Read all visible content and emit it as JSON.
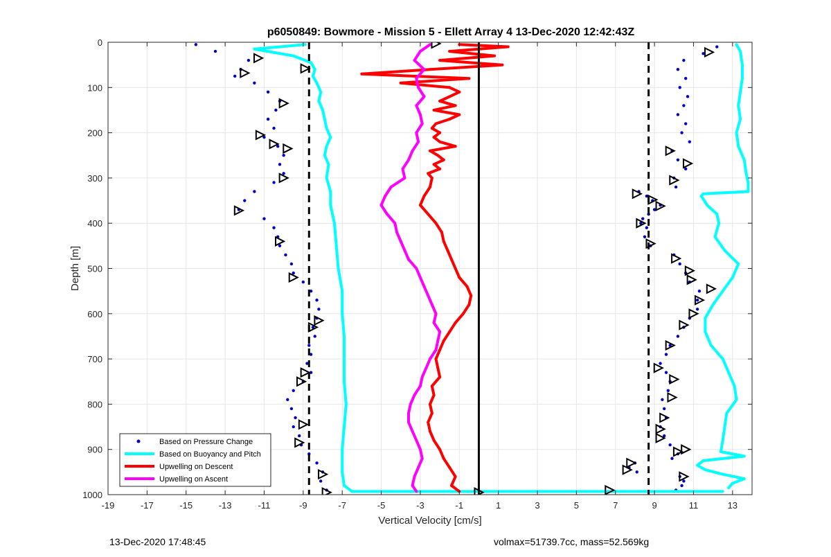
{
  "chart_data": {
    "type": "scatter",
    "title": "p6050849: Bowmore - Mission 5 - Ellett Array 4 13-Dec-2020 12:42:43Z",
    "xlabel": "Vertical Velocity [cm/s]",
    "ylabel": "Depth [m]",
    "xlim": [
      -19,
      14
    ],
    "ylim": [
      0,
      1000
    ],
    "y_reversed": true,
    "x_ticks": [
      -19,
      -17,
      -15,
      -13,
      -11,
      -9,
      -7,
      -5,
      -3,
      -1,
      1,
      3,
      5,
      7,
      9,
      11,
      13
    ],
    "y_ticks": [
      0,
      100,
      200,
      300,
      400,
      500,
      600,
      700,
      800,
      900,
      1000
    ],
    "grid": true,
    "legend_position": "bottom-left",
    "reference_lines": [
      {
        "x": -8.7,
        "style": "dashed",
        "color": "#000000"
      },
      {
        "x": 8.7,
        "style": "dashed",
        "color": "#000000"
      },
      {
        "x": 0,
        "style": "solid",
        "color": "#000000"
      }
    ],
    "series": [
      {
        "name": "Based on Pressure Change",
        "kind": "points",
        "color": "#0000cc",
        "branches": [
          {
            "depth": [
              5,
              20,
              40,
              60,
              75,
              90,
              110,
              130,
              150,
              170,
              190,
              210,
              230,
              250,
              270,
              290,
              310,
              330,
              350,
              370,
              390,
              410,
              430,
              450,
              470,
              490,
              510,
              530,
              550,
              570,
              590,
              610,
              630,
              650,
              670,
              690,
              710,
              730,
              750,
              770,
              790,
              810,
              830,
              850,
              870,
              890,
              910,
              930,
              950,
              970,
              990
            ],
            "velocity": [
              -14.5,
              -13.5,
              -11.8,
              -12.2,
              -12.5,
              -11.5,
              -10.8,
              -10.2,
              -10.4,
              -10.8,
              -10.5,
              -11.0,
              -10.3,
              -10.0,
              -10.2,
              -10.0,
              -10.5,
              -11.5,
              -12.0,
              -12.3,
              -11.0,
              -10.5,
              -10.3,
              -10.2,
              -9.9,
              -9.6,
              -9.5,
              -9.0,
              -8.6,
              -8.3,
              -8.2,
              -8.3,
              -8.5,
              -8.4,
              -8.7,
              -8.6,
              -8.8,
              -8.6,
              -9.0,
              -9.5,
              -9.8,
              -9.6,
              -9.4,
              -9.5,
              -9.2,
              -9.1,
              -8.7,
              -8.3,
              -8.0,
              -8.1,
              -7.8
            ]
          },
          {
            "depth": [
              10,
              25,
              40,
              60,
              80,
              100,
              120,
              140,
              160,
              180,
              200,
              220,
              240,
              260,
              280,
              300,
              320,
              330,
              340,
              350,
              360,
              370,
              380,
              390,
              400,
              410,
              430,
              450,
              470,
              490,
              510,
              530,
              550,
              570,
              590,
              610,
              630,
              650,
              670,
              690,
              710,
              730,
              750,
              770,
              790,
              810,
              830,
              850,
              870,
              890,
              910,
              920,
              930,
              940,
              950,
              960,
              970,
              980,
              990
            ],
            "velocity": [
              12.2,
              11.5,
              10.5,
              10.2,
              10.6,
              10.3,
              10.7,
              10.5,
              10.2,
              10.6,
              10.4,
              10.8,
              9.9,
              10.2,
              10.6,
              10.0,
              10.1,
              8.2,
              8.6,
              8.9,
              9.3,
              9.0,
              8.7,
              8.4,
              8.3,
              8.6,
              8.5,
              8.8,
              10.0,
              10.3,
              10.6,
              10.8,
              11.3,
              11.2,
              11.2,
              10.8,
              10.5,
              10.2,
              9.8,
              9.6,
              9.3,
              9.6,
              9.8,
              9.7,
              9.4,
              9.5,
              9.6,
              9.3,
              9.5,
              9.8,
              10.2,
              9.9,
              8.0,
              7.7,
              8.1,
              10.3,
              10.5,
              10.4,
              10.1
            ]
          }
        ]
      },
      {
        "name": "Based on Buoyancy and Pitch",
        "kind": "line",
        "color": "#00ffff",
        "branches": [
          {
            "depth": [
              5,
              15,
              30,
              45,
              60,
              75,
              90,
              110,
              130,
              150,
              170,
              190,
              210,
              230,
              250,
              270,
              300,
              330,
              360,
              400,
              450,
              500,
              550,
              600,
              650,
              700,
              750,
              800,
              850,
              900,
              950,
              980,
              993
            ],
            "velocity": [
              -8.9,
              -11.5,
              -9.5,
              -8.6,
              -8.4,
              -8.5,
              -8.3,
              -8.1,
              -8.2,
              -8.0,
              -7.9,
              -7.8,
              -7.6,
              -7.8,
              -7.9,
              -7.7,
              -7.8,
              -7.6,
              -7.6,
              -7.4,
              -7.3,
              -7.2,
              -7.0,
              -7.0,
              -6.9,
              -6.9,
              -6.9,
              -6.8,
              -6.9,
              -7.0,
              -7.0,
              -6.9,
              -6.5
            ]
          },
          {
            "depth": [
              993,
              993
            ],
            "velocity": [
              -6.5,
              12.5
            ]
          },
          {
            "depth": [
              5,
              20,
              50,
              80,
              110,
              140,
              170,
              200,
              230,
              260,
              290,
              310,
              330,
              335,
              340,
              360,
              380,
              400,
              430,
              460,
              490,
              520,
              550,
              580,
              610,
              640,
              670,
              700,
              730,
              760,
              790,
              820,
              850,
              880,
              905,
              915,
              925,
              935,
              945,
              955,
              965,
              975,
              985
            ],
            "velocity": [
              13.2,
              13.4,
              13.5,
              13.5,
              13.4,
              13.3,
              13.4,
              13.2,
              13.3,
              13.6,
              13.7,
              13.8,
              13.8,
              11.5,
              11.4,
              11.7,
              12.2,
              12.3,
              12.1,
              12.6,
              13.3,
              13.0,
              12.5,
              12.0,
              11.6,
              11.6,
              11.9,
              12.5,
              12.8,
              13.1,
              13.2,
              12.7,
              12.6,
              12.5,
              12.4,
              13.6,
              11.5,
              11.2,
              11.6,
              12.5,
              13.6,
              13.0,
              12.8
            ]
          }
        ]
      },
      {
        "name": "Upwelling on Descent",
        "kind": "line",
        "color": "#ff0000",
        "branches": [
          {
            "depth": [
              5,
              10,
              20,
              30,
              40,
              50,
              60,
              70,
              80,
              90,
              100,
              110,
              120,
              130,
              140,
              150,
              160,
              170,
              180,
              190,
              200,
              210,
              220,
              230,
              240,
              250,
              260,
              270,
              280,
              290,
              300,
              320,
              340,
              360,
              380,
              400,
              420,
              440,
              460,
              480,
              500,
              520,
              540,
              560,
              580,
              600,
              620,
              640,
              660,
              680,
              700,
              720,
              740,
              760,
              780,
              800,
              820,
              840,
              860,
              880,
              900,
              920,
              940,
              960,
              980,
              993
            ],
            "velocity": [
              -1.0,
              1.5,
              -1.5,
              0.8,
              -2.0,
              1.2,
              -2.5,
              -6.0,
              -0.5,
              -4.0,
              -1.5,
              -1.0,
              -1.5,
              -2.0,
              -1.2,
              -2.3,
              -1.0,
              -1.5,
              -2.2,
              -2.4,
              -2.0,
              -2.3,
              -2.0,
              -1.2,
              -2.5,
              -2.1,
              -1.8,
              -2.3,
              -2.0,
              -2.6,
              -2.4,
              -2.5,
              -2.8,
              -3.0,
              -2.6,
              -2.2,
              -1.9,
              -1.8,
              -1.6,
              -1.4,
              -1.2,
              -1.0,
              -0.6,
              -0.4,
              -0.5,
              -0.8,
              -1.2,
              -1.5,
              -1.8,
              -2.0,
              -2.2,
              -2.1,
              -2.0,
              -2.4,
              -2.3,
              -2.5,
              -2.4,
              -2.6,
              -2.5,
              -2.3,
              -2.0,
              -1.8,
              -1.5,
              -1.2,
              -1.4,
              -1.0
            ]
          }
        ]
      },
      {
        "name": "Upwelling on Ascent",
        "kind": "line",
        "color": "#ff00ff",
        "branches": [
          {
            "depth": [
              5,
              20,
              40,
              60,
              80,
              100,
              120,
              140,
              160,
              180,
              200,
              220,
              240,
              260,
              280,
              300,
              320,
              340,
              360,
              380,
              400,
              420,
              440,
              460,
              480,
              500,
              520,
              540,
              560,
              580,
              600,
              620,
              640,
              660,
              680,
              700,
              720,
              740,
              760,
              780,
              800,
              820,
              840,
              860,
              880,
              900,
              920,
              940,
              960,
              980,
              993
            ],
            "velocity": [
              -2.5,
              -3.0,
              -3.3,
              -2.8,
              -3.2,
              -3.1,
              -2.8,
              -3.2,
              -3.0,
              -2.9,
              -3.2,
              -3.1,
              -3.4,
              -3.6,
              -3.9,
              -3.8,
              -4.5,
              -4.8,
              -5.0,
              -4.7,
              -4.3,
              -4.2,
              -4.0,
              -3.8,
              -3.6,
              -3.2,
              -3.0,
              -2.8,
              -2.6,
              -2.4,
              -2.2,
              -2.3,
              -2.0,
              -2.1,
              -2.2,
              -2.5,
              -2.7,
              -2.9,
              -3.0,
              -3.3,
              -3.5,
              -3.6,
              -3.6,
              -3.4,
              -3.2,
              -3.0,
              -2.9,
              -3.1,
              -3.3,
              -3.4,
              -3.2
            ]
          }
        ]
      }
    ],
    "turn_markers": [
      {
        "velocity": -2.2,
        "depth": 3
      },
      {
        "velocity": -11.3,
        "depth": 35
      },
      {
        "velocity": -12.0,
        "depth": 68
      },
      {
        "velocity": -8.9,
        "depth": 58
      },
      {
        "velocity": -10.0,
        "depth": 135
      },
      {
        "velocity": -11.2,
        "depth": 205
      },
      {
        "velocity": -10.5,
        "depth": 225
      },
      {
        "velocity": -9.8,
        "depth": 235
      },
      {
        "velocity": -10.0,
        "depth": 300
      },
      {
        "velocity": -12.3,
        "depth": 372
      },
      {
        "velocity": -10.2,
        "depth": 440
      },
      {
        "velocity": -9.5,
        "depth": 520
      },
      {
        "velocity": -8.2,
        "depth": 615
      },
      {
        "velocity": -8.5,
        "depth": 630
      },
      {
        "velocity": -8.9,
        "depth": 730
      },
      {
        "velocity": -9.1,
        "depth": 750
      },
      {
        "velocity": -9.0,
        "depth": 845
      },
      {
        "velocity": -9.2,
        "depth": 885
      },
      {
        "velocity": -8.0,
        "depth": 955
      },
      {
        "velocity": -7.8,
        "depth": 995
      },
      {
        "velocity": 0.0,
        "depth": 995
      },
      {
        "velocity": 6.7,
        "depth": 990
      },
      {
        "velocity": 11.8,
        "depth": 22
      },
      {
        "velocity": 9.8,
        "depth": 240
      },
      {
        "velocity": 10.7,
        "depth": 268
      },
      {
        "velocity": 10.0,
        "depth": 305
      },
      {
        "velocity": 8.1,
        "depth": 335
      },
      {
        "velocity": 8.9,
        "depth": 348
      },
      {
        "velocity": 9.3,
        "depth": 362
      },
      {
        "velocity": 8.3,
        "depth": 400
      },
      {
        "velocity": 8.8,
        "depth": 445
      },
      {
        "velocity": 10.1,
        "depth": 478
      },
      {
        "velocity": 10.8,
        "depth": 505
      },
      {
        "velocity": 10.9,
        "depth": 525
      },
      {
        "velocity": 11.9,
        "depth": 545
      },
      {
        "velocity": 11.3,
        "depth": 570
      },
      {
        "velocity": 11.0,
        "depth": 600
      },
      {
        "velocity": 10.5,
        "depth": 625
      },
      {
        "velocity": 9.8,
        "depth": 670
      },
      {
        "velocity": 9.2,
        "depth": 720
      },
      {
        "velocity": 10.0,
        "depth": 745
      },
      {
        "velocity": 9.9,
        "depth": 785
      },
      {
        "velocity": 9.5,
        "depth": 830
      },
      {
        "velocity": 9.3,
        "depth": 855
      },
      {
        "velocity": 9.3,
        "depth": 875
      },
      {
        "velocity": 10.6,
        "depth": 900
      },
      {
        "velocity": 10.2,
        "depth": 905
      },
      {
        "velocity": 7.8,
        "depth": 930
      },
      {
        "velocity": 7.6,
        "depth": 945
      },
      {
        "velocity": 10.5,
        "depth": 960
      }
    ]
  },
  "footer": {
    "timestamp": "13-Dec-2020 17:48:45",
    "volmax_mass": "volmax=51739.7cc, mass=52.569kg"
  }
}
